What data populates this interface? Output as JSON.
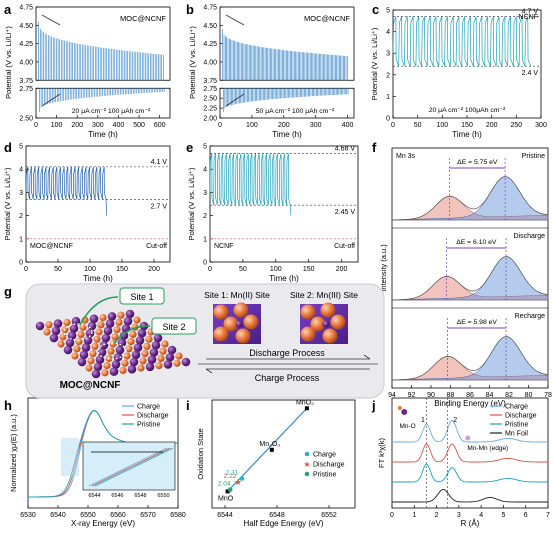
{
  "figure": {
    "panels": {
      "a": "a",
      "b": "b",
      "c": "c",
      "d": "d",
      "e": "e",
      "f": "f",
      "g": "g",
      "h": "h",
      "i": "i",
      "j": "j"
    }
  },
  "colors": {
    "blue_dark": "#1f5fa8",
    "blue_mid": "#2f7fc4",
    "blue_light": "#6fa8dc",
    "teal": "#1aa3b8",
    "red_dashed": "#d9534f",
    "peak_red": "#e07b6a",
    "peak_blue": "#5b8bd6",
    "arrow_purple": "#7a3ec9",
    "sphere_purple": "#6a2a8a",
    "sphere_orange": "#e8773a",
    "grey_box": "#e9e9ee"
  },
  "chart_data": [
    {
      "panel": "a",
      "type": "line",
      "ylabel": "Potential (V vs. Li/Li⁺)",
      "xlabel": "Time (h)",
      "xlim": [
        0,
        650
      ],
      "ylim_top": [
        3.75,
        4.75
      ],
      "ylim_bottom": [
        2.5,
        2.75
      ],
      "xticks": [
        "0",
        "100",
        "200",
        "300",
        "400",
        "500",
        "600"
      ],
      "yticks_top": [
        "3.75",
        "4.00",
        "4.25",
        "4.50",
        "4.75"
      ],
      "yticks_bottom": [
        "2.50",
        "2.75"
      ],
      "legend": "MOC@NCNF",
      "annotation": "20 μA cm⁻² 100 μAh cm⁻²",
      "series": [
        {
          "upper_start": 4.55,
          "upper_end": 4.1,
          "lower_start": 2.55,
          "lower_end": 2.72,
          "cycles": 78
        }
      ]
    },
    {
      "panel": "b",
      "type": "line",
      "ylabel": "Potential (V vs. Li/Li⁺)",
      "xlabel": "Time (h)",
      "xlim": [
        0,
        420
      ],
      "ylim_top": [
        3.75,
        4.75
      ],
      "ylim_bottom": [
        2.0,
        2.75
      ],
      "xticks": [
        "0",
        "100",
        "200",
        "300",
        "400"
      ],
      "yticks_top": [
        "3.75",
        "4.00",
        "4.25",
        "4.50",
        "4.75"
      ],
      "yticks_bottom": [
        "2.00",
        "2.25",
        "2.50",
        "2.75"
      ],
      "legend": "MOC@NCNF",
      "annotation": "50 μA cm⁻² 100 μAh cm⁻²",
      "series": [
        {
          "upper_start": 4.45,
          "upper_end": 4.08,
          "lower_start": 2.15,
          "lower_end": 2.6,
          "cycles": 95
        }
      ]
    },
    {
      "panel": "c",
      "type": "line",
      "ylabel": "Potential (V vs. Li/Li⁺)",
      "xlabel": "Time (h)",
      "xlim": [
        0,
        300
      ],
      "ylim": [
        0,
        5
      ],
      "xticks": [
        "0",
        "50",
        "100",
        "150",
        "200",
        "250",
        "300"
      ],
      "yticks": [
        "0",
        "1",
        "2",
        "3",
        "4",
        "5"
      ],
      "legend": "NCNF",
      "annotation": "20 μA cm⁻² 100μAh cm⁻²",
      "upper_label": "4.7 V",
      "lower_label": "2.4 V",
      "series": [
        {
          "upper": 4.7,
          "lower": 2.4,
          "cycles": 24
        }
      ]
    },
    {
      "panel": "d",
      "type": "line",
      "ylabel": "Potential (V vs. Li/Li⁺)",
      "xlabel": "Time (h)",
      "xlim": [
        0,
        225
      ],
      "ylim": [
        0,
        5
      ],
      "xticks": [
        "0",
        "50",
        "100",
        "150",
        "200"
      ],
      "yticks": [
        "0",
        "1",
        "2",
        "3",
        "4",
        "5"
      ],
      "legend": "MOC@NCNF",
      "cutoff_label": "Cut-off",
      "upper_label": "4.1 V",
      "lower_label": "2.7 V",
      "series": [
        {
          "upper": 4.1,
          "lower": 2.7,
          "end_time": 125,
          "cutoff": 1.0
        }
      ]
    },
    {
      "panel": "e",
      "type": "line",
      "ylabel": "Potential (V vs. Li/Li⁺)",
      "xlabel": "Time (h)",
      "xlim": [
        0,
        225
      ],
      "ylim": [
        0,
        5
      ],
      "xticks": [
        "0",
        "50",
        "100",
        "150",
        "200"
      ],
      "yticks": [
        "0",
        "1",
        "2",
        "3",
        "4",
        "5"
      ],
      "legend": "NCNF",
      "cutoff_label": "Cut-off",
      "upper_label": "4.68 V",
      "lower_label": "2.45 V",
      "series": [
        {
          "upper": 4.68,
          "lower": 2.45,
          "end_time": 122,
          "cutoff": 1.0
        }
      ]
    },
    {
      "panel": "f",
      "type": "line",
      "title": "Mn 3s",
      "ylabel": "Intensity (a.u.)",
      "xlabel": "Binding Energy (eV)",
      "xlim": [
        94,
        78
      ],
      "xticks": [
        "94",
        "92",
        "90",
        "88",
        "86",
        "84",
        "82",
        "80",
        "78"
      ],
      "spectra": [
        {
          "name": "Pristine",
          "delta": "ΔE = 5.75 eV",
          "peak1": 88.1,
          "peak2": 82.4
        },
        {
          "name": "Discharge",
          "delta": "ΔE = 6.10 eV",
          "peak1": 88.4,
          "peak2": 82.3
        },
        {
          "name": "Recharge",
          "delta": "ΔE = 5.98 eV",
          "peak1": 88.3,
          "peak2": 82.3
        }
      ]
    },
    {
      "panel": "h",
      "type": "line",
      "ylabel": "Normalized χμ(E) (a.u.)",
      "xlabel": "X-ray Energy (eV)",
      "xlim": [
        6530,
        6580
      ],
      "xticks": [
        "6530",
        "6540",
        "6550",
        "6560",
        "6570",
        "6580"
      ],
      "inset_xticks": [
        "6544",
        "6546",
        "6548",
        "6550"
      ],
      "series": [
        {
          "name": "Charge",
          "color": "#6fa8dc",
          "edge": 6546.2
        },
        {
          "name": "Discharge",
          "color": "#d9534f",
          "edge": 6545.6
        },
        {
          "name": "Pristine",
          "color": "#1aa3b8",
          "edge": 6545.0
        }
      ]
    },
    {
      "panel": "i",
      "type": "scatter",
      "ylabel": "Oxidation State",
      "xlabel": "Half Edge Energy (eV)",
      "xlim": [
        6543,
        6554
      ],
      "ylim": [
        1.6,
        4.2
      ],
      "xticks": [
        "6544",
        "6548",
        "6552"
      ],
      "references": [
        {
          "label": "MnO",
          "x": 6544.2,
          "y": 2.0
        },
        {
          "label": "Mn₂O₃",
          "x": 6547.6,
          "y": 3.0
        },
        {
          "label": "MnO₂",
          "x": 6550.3,
          "y": 4.0
        }
      ],
      "samples": [
        {
          "name": "Charge",
          "value_label": "2.31",
          "x": 6545.3,
          "y": 2.31,
          "color": "#2ab0c8",
          "marker": "circle"
        },
        {
          "name": "Discharge",
          "value_label": "2.22",
          "x": 6545.0,
          "y": 2.22,
          "color": "#d9534f",
          "marker": "star"
        },
        {
          "name": "Pristine",
          "value_label": "2.04",
          "x": 6544.4,
          "y": 2.04,
          "color": "#28a07a",
          "marker": "circle"
        }
      ]
    },
    {
      "panel": "j",
      "type": "line",
      "ylabel": "FT k³χ(k)",
      "xlabel": "R (Å)",
      "xlim": [
        0,
        7
      ],
      "xticks": [
        "0",
        "1",
        "2",
        "3",
        "4",
        "5",
        "6",
        "7"
      ],
      "peak_labels": [
        "1",
        "2"
      ],
      "annotations": [
        "Mn-O",
        "Mn-Mn (edge)"
      ],
      "series": [
        {
          "name": "Charge",
          "color": "#6fa8dc"
        },
        {
          "name": "Discharge",
          "color": "#d9534f"
        },
        {
          "name": "Pristine",
          "color": "#1aa3b8"
        },
        {
          "name": "Mn Foil",
          "color": "#222222"
        }
      ]
    }
  ],
  "schematic": {
    "caption": "MOC@NCNF",
    "site1_label": "Site 1",
    "site2_label": "Site 2",
    "site1_title": "Site 1: Mn(II) Site",
    "site2_title": "Site 2: Mn(III) Site",
    "discharge_label": "Discharge Process",
    "charge_label": "Charge Process"
  }
}
